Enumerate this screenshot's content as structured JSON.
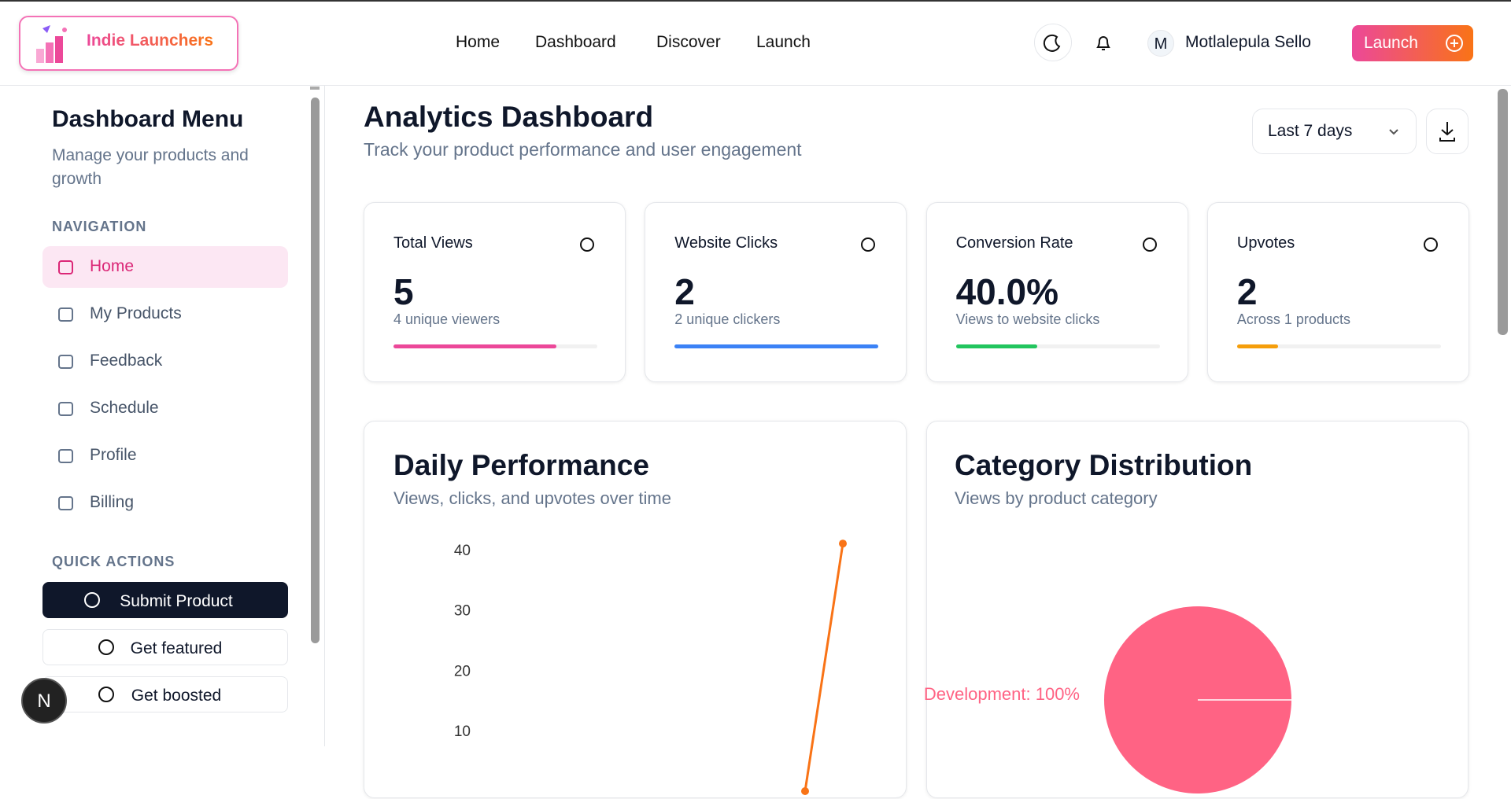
{
  "header": {
    "brand": "Indie Launchers",
    "nav": [
      "Home",
      "Dashboard",
      "Discover",
      "Launch"
    ],
    "user_initial": "M",
    "user_name": "Motlalepula Sello",
    "launch_button": "Launch"
  },
  "sidebar": {
    "title": "Dashboard Menu",
    "subtitle": "Manage your products and growth",
    "nav_heading": "NAVIGATION",
    "nav_items": [
      "Home",
      "My Products",
      "Feedback",
      "Schedule",
      "Profile",
      "Billing"
    ],
    "actions_heading": "QUICK ACTIONS",
    "actions": [
      "Submit Product",
      "Get featured",
      "Get boosted"
    ],
    "badge": "N"
  },
  "dashboard": {
    "title": "Analytics Dashboard",
    "subtitle": "Track your product performance and user engagement",
    "range": "Last 7 days",
    "stats": [
      {
        "label": "Total Views",
        "value": 5,
        "detail": "4 unique viewers",
        "progress": 80,
        "color": "#ec4899"
      },
      {
        "label": "Website Clicks",
        "value": 2,
        "detail": "2 unique clickers",
        "progress": 100,
        "color": "#3b82f6"
      },
      {
        "label": "Conversion Rate",
        "value": 40.0,
        "value_label": "40.0%",
        "detail": "Views to website clicks",
        "progress": 40,
        "color": "#22c55e"
      },
      {
        "label": "Upvotes",
        "value": 2,
        "detail": "Across 1 products",
        "progress": 20,
        "color": "#f59e0b"
      }
    ],
    "daily_chart": {
      "type": "line",
      "title": "Daily Performance",
      "subtitle": "Views, clicks, and upvotes over time",
      "ylim": [
        0,
        45
      ],
      "yticks": [
        10,
        20,
        30,
        40
      ],
      "series": [
        {
          "color": "#f97316",
          "values": [
            0,
            41
          ]
        }
      ]
    },
    "category_chart": {
      "type": "pie",
      "title": "Category Distribution",
      "subtitle": "Views by product category",
      "values": [
        100
      ],
      "value_labels": [
        "Development: 100%"
      ],
      "colors": [
        "#ff6384"
      ]
    }
  }
}
